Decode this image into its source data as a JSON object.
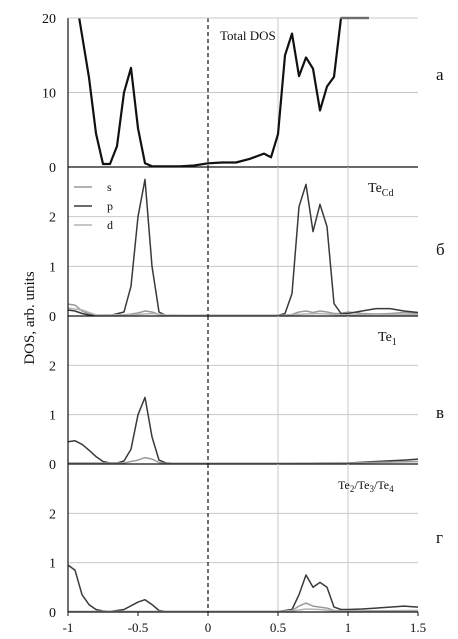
{
  "chart_data": [
    {
      "type": "line",
      "xlim": [
        -1,
        1.5
      ],
      "ylim": [
        0,
        20
      ],
      "yticks": [
        "0",
        "10",
        "20"
      ],
      "label": "Total DOS",
      "tag": "а",
      "series": [
        {
          "color": "#111111",
          "x": [
            -0.92,
            -0.85,
            -0.8,
            -0.75,
            -0.7,
            -0.65,
            -0.6,
            -0.55,
            -0.5,
            -0.45,
            -0.4,
            -0.35,
            -0.3,
            -0.25,
            -0.2,
            -0.1,
            0,
            0.1,
            0.2,
            0.3,
            0.4,
            0.45,
            0.5,
            0.55,
            0.6,
            0.65,
            0.7,
            0.75,
            0.8,
            0.85,
            0.9,
            0.95,
            1,
            1.05,
            1.1,
            1.15
          ],
          "y": [
            20,
            12,
            4.5,
            0.4,
            0.4,
            2.8,
            10,
            13.3,
            5.2,
            0.5,
            0.1,
            0.1,
            0.1,
            0.1,
            0.1,
            0.2,
            0.5,
            0.6,
            0.6,
            1.1,
            1.8,
            1.3,
            4.4,
            15,
            17.9,
            12.2,
            14.7,
            13.2,
            7.6,
            10.8,
            12.1,
            20,
            20,
            20,
            20,
            20
          ]
        }
      ]
    },
    {
      "type": "line",
      "xlim": [
        -1,
        1.5
      ],
      "ylim": [
        0,
        3
      ],
      "yticks": [
        "0",
        "1",
        "2"
      ],
      "label": "Te",
      "label_sub": "Cd",
      "tag": "б",
      "legend": [
        "s",
        "p",
        "d"
      ],
      "series": [
        {
          "name": "s",
          "color": "#9a9a9a",
          "x": [
            -1,
            -0.95,
            -0.9,
            -0.85,
            -0.8,
            -0.7,
            -0.6,
            -0.5,
            -0.45,
            -0.4,
            -0.35,
            -0.3,
            -0.2,
            0,
            0.2,
            0.5,
            0.6,
            0.65,
            0.7,
            0.75,
            0.8,
            0.85,
            0.9,
            0.95,
            1,
            1.1,
            1.2,
            1.3,
            1.4,
            1.5
          ],
          "y": [
            0.24,
            0.22,
            0.1,
            0.04,
            0.02,
            0.01,
            0.02,
            0.06,
            0.1,
            0.08,
            0.03,
            0.01,
            0.01,
            0.01,
            0.01,
            0.01,
            0.03,
            0.08,
            0.1,
            0.07,
            0.1,
            0.08,
            0.05,
            0.05,
            0.08,
            0.05,
            0.04,
            0.05,
            0.07,
            0.05
          ]
        },
        {
          "name": "p",
          "color": "#3a3a3a",
          "x": [
            -1,
            -0.95,
            -0.9,
            -0.85,
            -0.8,
            -0.7,
            -0.6,
            -0.55,
            -0.5,
            -0.45,
            -0.4,
            -0.35,
            -0.3,
            -0.25,
            -0.2,
            0,
            0.2,
            0.5,
            0.55,
            0.6,
            0.65,
            0.7,
            0.75,
            0.8,
            0.85,
            0.9,
            0.95,
            1,
            1.1,
            1.2,
            1.3,
            1.4,
            1.5
          ],
          "y": [
            0.12,
            0.1,
            0.05,
            0.02,
            0.01,
            0.01,
            0.08,
            0.6,
            2.0,
            2.75,
            1.0,
            0.08,
            0.01,
            0.01,
            0.01,
            0.01,
            0.01,
            0.01,
            0.05,
            0.45,
            2.2,
            2.65,
            1.7,
            2.25,
            1.8,
            0.25,
            0.05,
            0.05,
            0.1,
            0.15,
            0.15,
            0.1,
            0.07
          ]
        },
        {
          "name": "d",
          "color": "#b4b4b4",
          "x": [
            -1,
            -0.9,
            -0.8,
            -0.5,
            -0.4,
            -0.3,
            0,
            0.5,
            0.7,
            0.8,
            0.9,
            1,
            1.2,
            1.5
          ],
          "y": [
            0.16,
            0.12,
            0.02,
            0.03,
            0.05,
            0.02,
            0.01,
            0.01,
            0.04,
            0.05,
            0.03,
            0.02,
            0.03,
            0.03
          ]
        }
      ]
    },
    {
      "type": "line",
      "xlim": [
        -1,
        1.5
      ],
      "ylim": [
        0,
        3
      ],
      "yticks": [
        "0",
        "1",
        "2"
      ],
      "label": "Te",
      "label_sub": "1",
      "tag": "в",
      "series": [
        {
          "color": "#3a3a3a",
          "x": [
            -1,
            -0.95,
            -0.9,
            -0.85,
            -0.8,
            -0.75,
            -0.7,
            -0.65,
            -0.6,
            -0.55,
            -0.5,
            -0.45,
            -0.4,
            -0.35,
            -0.3,
            -0.25,
            -0.2,
            0,
            0.5,
            1,
            1.2,
            1.4,
            1.5
          ],
          "y": [
            0.45,
            0.47,
            0.4,
            0.28,
            0.15,
            0.05,
            0.02,
            0.02,
            0.06,
            0.3,
            1.0,
            1.35,
            0.55,
            0.08,
            0.02,
            0.01,
            0.01,
            0.01,
            0.01,
            0.02,
            0.05,
            0.08,
            0.1
          ]
        },
        {
          "color": "#9a9a9a",
          "x": [
            -1,
            -0.6,
            -0.5,
            -0.45,
            -0.4,
            -0.35,
            -0.3,
            0,
            1,
            1.5
          ],
          "y": [
            0.02,
            0.02,
            0.08,
            0.13,
            0.1,
            0.03,
            0.01,
            0.01,
            0.02,
            0.05
          ]
        }
      ]
    },
    {
      "type": "line",
      "xlim": [
        -1,
        1.5
      ],
      "ylim": [
        0,
        3
      ],
      "yticks": [
        "0",
        "1",
        "2"
      ],
      "xticks": [
        "-1",
        "-0.5",
        "0",
        "0.5",
        "1",
        "1.5"
      ],
      "label": "Te",
      "label_parts": [
        "Te",
        "2",
        "/Te",
        "3",
        "/Te",
        "4"
      ],
      "tag": "г",
      "series": [
        {
          "color": "#3a3a3a",
          "x": [
            -1,
            -0.95,
            -0.9,
            -0.85,
            -0.8,
            -0.75,
            -0.7,
            -0.6,
            -0.5,
            -0.45,
            -0.4,
            -0.35,
            -0.3,
            0,
            0.5,
            0.6,
            0.65,
            0.7,
            0.75,
            0.8,
            0.85,
            0.9,
            0.95,
            1,
            1.1,
            1.2,
            1.3,
            1.4,
            1.5
          ],
          "y": [
            0.95,
            0.85,
            0.35,
            0.15,
            0.05,
            0.02,
            0.01,
            0.05,
            0.2,
            0.25,
            0.15,
            0.03,
            0.01,
            0.01,
            0.01,
            0.05,
            0.35,
            0.75,
            0.5,
            0.6,
            0.5,
            0.1,
            0.05,
            0.05,
            0.06,
            0.08,
            0.1,
            0.12,
            0.1
          ]
        },
        {
          "color": "#9a9a9a",
          "x": [
            -1,
            0.5,
            0.6,
            0.65,
            0.7,
            0.75,
            0.8,
            0.85,
            0.9,
            1,
            1.5
          ],
          "y": [
            0.01,
            0.01,
            0.03,
            0.12,
            0.18,
            0.12,
            0.1,
            0.08,
            0.03,
            0.02,
            0.03
          ]
        },
        {
          "color": "#b4b4b4",
          "x": [
            -1,
            0.5,
            0.6,
            0.7,
            0.8,
            0.9,
            1,
            1.5
          ],
          "y": [
            0.01,
            0.01,
            0.02,
            0.06,
            0.05,
            0.02,
            0.01,
            0.02
          ]
        }
      ]
    }
  ],
  "ylabel": "DOS, arb. units"
}
